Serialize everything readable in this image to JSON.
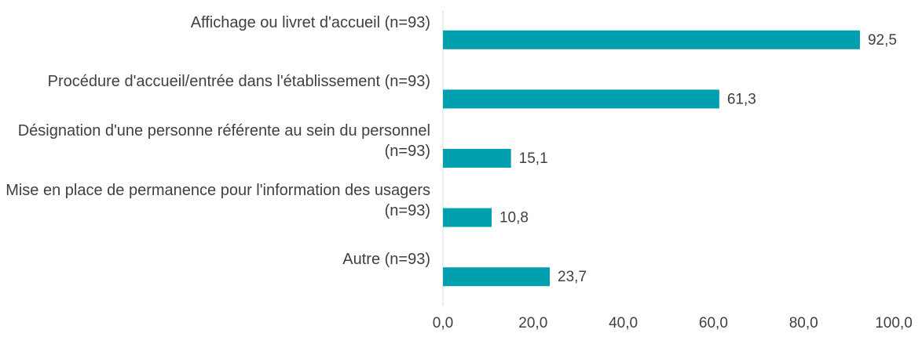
{
  "chart_data": {
    "type": "bar",
    "orientation": "horizontal",
    "categories": [
      "Affichage ou livret d'accueil (n=93)",
      "Procédure d'accueil/entrée dans l'établissement (n=93)",
      "Désignation d'une personne référente au sein du personnel (n=93)",
      "Mise en place de permanence pour l'information des usagers (n=93)",
      "Autre (n=93)"
    ],
    "values": [
      92.5,
      61.3,
      15.1,
      10.8,
      23.7
    ],
    "value_labels": [
      "92,5",
      "61,3",
      "15,1",
      "10,8",
      "23,7"
    ],
    "color": "#00a0ae",
    "xlim": [
      0,
      100
    ],
    "xticks": [
      {
        "value": 0,
        "label": "0,0"
      },
      {
        "value": 20,
        "label": "20,0"
      },
      {
        "value": 40,
        "label": "40,0"
      },
      {
        "value": 60,
        "label": "60,0"
      },
      {
        "value": 80,
        "label": "80,0"
      },
      {
        "value": 100,
        "label": "100,0"
      }
    ],
    "grid": false
  }
}
